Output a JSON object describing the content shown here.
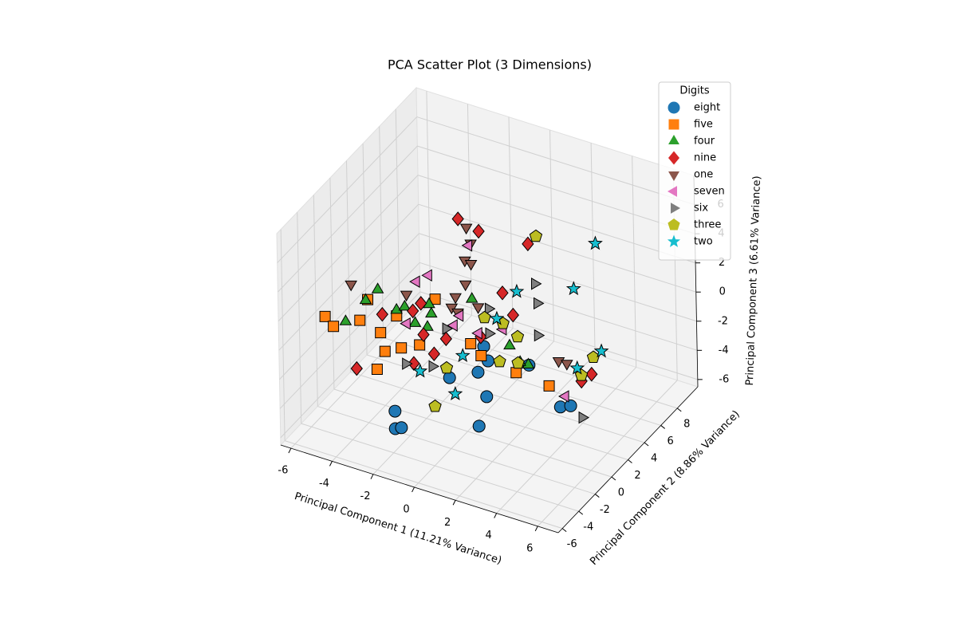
{
  "chart_data": {
    "type": "scatter3d",
    "title": "PCA Scatter Plot (3 Dimensions)",
    "xlabel": "Principal Component 1 (11.21% Variance)",
    "ylabel": "Principal Component 2 (8.86% Variance)",
    "zlabel": "Principal Component 3 (6.61% Variance)",
    "legend_title": "Digits",
    "legend_loc": "upper right",
    "grid": true,
    "xlim": [
      -6.5,
      7
    ],
    "ylim": [
      -6.5,
      10.5
    ],
    "zlim": [
      -6.5,
      8
    ],
    "xticks": [
      -6,
      -4,
      -2,
      0,
      2,
      4,
      6
    ],
    "yticks": [
      -6,
      -4,
      -2,
      0,
      2,
      4,
      6,
      8
    ],
    "zticks": [
      -6,
      -4,
      -2,
      0,
      2,
      4,
      6
    ],
    "series": [
      {
        "name": "eight",
        "color": "#1f77b4",
        "marker": "o",
        "x": [
          -1.9,
          -1.9,
          -1.6,
          0.8,
          2.2,
          2.5,
          2.7,
          2.6,
          2.2,
          4.7,
          6.2,
          6.7
        ],
        "y": [
          -4,
          -4,
          -4,
          -4,
          -4,
          -4,
          -4,
          -4,
          -4,
          -4,
          -4,
          -4
        ],
        "z": [
          -4.8,
          -3.6,
          -4.6,
          -0.1,
          0.9,
          2.8,
          1.9,
          -0.6,
          -2.8,
          2.5,
          0.3,
          0.6
        ]
      },
      {
        "name": "five",
        "color": "#ff7f0e",
        "marker": "s",
        "x": [
          -6.3,
          -5.9,
          -4.6,
          -4.2,
          -3.6,
          -3.4,
          -3.8,
          -2.8,
          -2.6,
          -1.7,
          -0.9,
          0.8,
          1.3,
          3.0,
          4.6
        ],
        "y": [
          -1.4,
          -1.4,
          -1.4,
          -1.4,
          -1.4,
          -1.4,
          -1.4,
          -1.4,
          -1.4,
          -1.4,
          -1.4,
          -1.4,
          -1.4,
          -1.4,
          -1.4
        ],
        "z": [
          -0.6,
          -1.1,
          -0.1,
          1.5,
          -0.5,
          -1.7,
          -3.1,
          1.0,
          -1.1,
          -0.5,
          3.0,
          0.7,
          0.1,
          -0.3,
          -0.5
        ]
      },
      {
        "name": "four",
        "color": "#2ca02c",
        "marker": "^",
        "x": [
          -5.3,
          -4.3,
          -3.7,
          -2.8,
          -2.4,
          -1.9,
          -1.2,
          -1.1,
          -1.3,
          0.9,
          2.7,
          3.6,
          3.2
        ],
        "y": [
          -1.4,
          -1.4,
          -1.4,
          -1.4,
          -1.4,
          -1.4,
          -1.4,
          -1.4,
          -1.4,
          -1.4,
          -1.4,
          -1.4,
          -1.4
        ],
        "z": [
          -0.5,
          1.4,
          2.4,
          1.4,
          1.8,
          0.9,
          2.5,
          1.9,
          0.9,
          3.8,
          1.4,
          0.5,
          0.5
        ]
      },
      {
        "name": "nine",
        "color": "#d62728",
        "marker": "D",
        "x": [
          -1.8,
          -0.8,
          1.6,
          2.4,
          2.9,
          -3.5,
          -2.0,
          -1.6,
          -1.5,
          -1.0,
          -0.4,
          -4.8,
          -2.0,
          1.3,
          4.1,
          4.6
        ],
        "y": [
          3.7,
          3.7,
          3.7,
          -1.4,
          -1.4,
          -1.4,
          -1.4,
          -1.4,
          -1.4,
          -1.4,
          -1.4,
          -1.4,
          -1.4,
          -1.4,
          3.7,
          3.7
        ],
        "z": [
          5.1,
          4.7,
          4.9,
          4.9,
          3.6,
          0.8,
          1.7,
          2.4,
          0.3,
          -0.8,
          0.5,
          -3.5,
          -1.9,
          1.4,
          -3.4,
          -2.7
        ]
      },
      {
        "name": "one",
        "color": "#8c564b",
        "marker": "v",
        "x": [
          -5.0,
          -2.3,
          -1.4,
          -1.2,
          -1.5,
          -1.2,
          0.6,
          0.1,
          -0.1,
          0.2,
          1.2,
          3.0,
          3.4
        ],
        "y": [
          -1.4,
          -1.4,
          3.7,
          3.7,
          3.7,
          3.7,
          -1.4,
          -1.4,
          -1.4,
          -1.4,
          -1.4,
          3.7,
          3.7
        ],
        "z": [
          2.2,
          2.7,
          4.7,
          3.7,
          2.4,
          2.3,
          4.7,
          3.6,
          2.8,
          2.6,
          3.4,
          -2.5,
          -2.5
        ]
      },
      {
        "name": "seven",
        "color": "#e377c2",
        "marker": "<",
        "x": [
          -1.2,
          -1.8,
          -2.3,
          0.0,
          0.3,
          -1.3,
          1.2,
          2.4,
          3.3
        ],
        "y": [
          -1.4,
          -1.4,
          -1.4,
          -1.4,
          -1.4,
          3.7,
          -1.4,
          -1.4,
          3.7
        ],
        "z": [
          4.5,
          3.8,
          0.7,
          1.6,
          2.4,
          3.5,
          1.6,
          2.4,
          -4.8
        ]
      },
      {
        "name": "six",
        "color": "#7f7f7f",
        "marker": ">",
        "x": [
          1.9,
          2.0,
          2.0,
          -0.4,
          1.7,
          -2.4,
          -1.1,
          4.1,
          1.7
        ],
        "y": [
          3.7,
          3.7,
          3.7,
          -1.4,
          -1.4,
          -1.4,
          -1.4,
          3.7,
          -1.4
        ],
        "z": [
          2.3,
          1.0,
          -1.2,
          1.2,
          3.5,
          -2.1,
          -1.7,
          -5.9,
          1.8
        ]
      },
      {
        "name": "three",
        "color": "#bcbd22",
        "marker": "p",
        "x": [
          2.0,
          1.5,
          2.4,
          3.1,
          2.2,
          3.1,
          -0.4,
          -1.0,
          4.7,
          4.1
        ],
        "y": [
          3.7,
          -1.4,
          -1.4,
          -1.4,
          -1.4,
          -1.4,
          -1.4,
          -1.4,
          3.7,
          3.7
        ],
        "z": [
          5.6,
          2.8,
          2.8,
          2.2,
          0.1,
          0.4,
          -1.5,
          -4.4,
          -1.5,
          -3.0
        ]
      },
      {
        "name": "two",
        "color": "#17becf",
        "marker": "*",
        "x": [
          4.9,
          3.8,
          3.1,
          2.1,
          0.4,
          -1.7,
          0.0,
          5.1,
          3.9
        ],
        "y": [
          3.7,
          3.7,
          -1.4,
          -1.4,
          -1.4,
          -1.4,
          -1.4,
          3.7,
          3.7
        ],
        "z": [
          6.4,
          2.8,
          5.3,
          3.0,
          -0.3,
          -2.3,
          -3.1,
          -0.9,
          -2.6
        ]
      }
    ]
  }
}
